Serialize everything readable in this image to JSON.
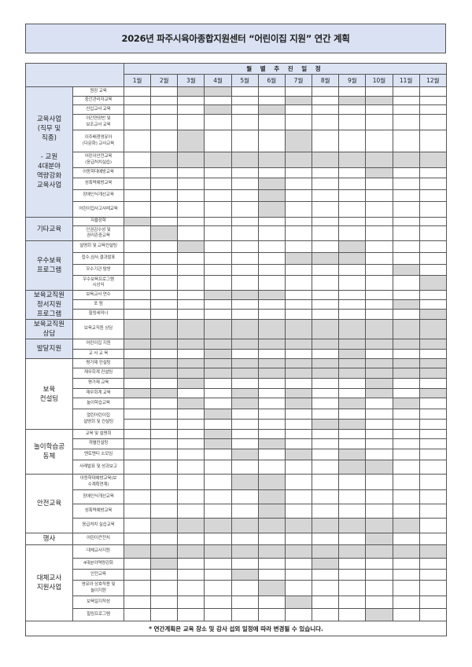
{
  "title": "2026년 파주시육아종합지원센터 “어린이집 지원” 연간 계획",
  "header": {
    "schedule_label": "월 별 추 진 일 정",
    "months": [
      "1월",
      "2월",
      "3월",
      "4월",
      "5월",
      "6월",
      "7월",
      "8월",
      "9월",
      "10월",
      "11월",
      "12월"
    ]
  },
  "shade_color": "#d6d6d6",
  "category_color": "#dce4f4",
  "categories": [
    {
      "label": "교육사업\n(직무 및\n직종)\n\n- 교원\n4대분야\n역량강화\n교육사업",
      "highlight": true,
      "items": [
        {
          "label": "원장 교육",
          "months": [
            [
              3,
              4
            ]
          ]
        },
        {
          "label": "중간관리자교육",
          "months": [
            [
              7,
              9,
              10
            ]
          ]
        },
        {
          "label": "신입교사 교육",
          "months": [
            [
              4,
              6
            ]
          ]
        },
        {
          "label": "야간연장반 및\n보조교사 교육",
          "months": [
            []
          ]
        },
        {
          "label": "이주배경영유아\n(다문화) 교사교육",
          "months": [
            [
              3,
              7
            ]
          ]
        },
        {
          "label": "어린이안전교육\n(응급처치실습)",
          "months": [
            [
              2,
              3,
              4,
              5,
              6,
              7,
              8,
              9,
              10,
              11,
              12
            ]
          ]
        },
        {
          "label": "아동학대예방교육",
          "months": [
            [
              10
            ]
          ]
        },
        {
          "label": "성폭력예방교육",
          "months": [
            [
              6
            ]
          ]
        },
        {
          "label": "장애인식개선교육",
          "months": [
            [
              6
            ]
          ]
        },
        {
          "label": "어린이집사고사례교육",
          "months": [
            [
              6
            ]
          ]
        }
      ]
    },
    {
      "label": "기타교육",
      "highlight": true,
      "items": [
        {
          "label": "자율장학",
          "months": [
            [
              1
            ]
          ]
        },
        {
          "label": "인권감수성 및\n권리존중교육",
          "months": [
            [
              2
            ]
          ]
        }
      ]
    },
    {
      "label": "우수보육\n프로그램",
      "highlight": true,
      "items": [
        {
          "label": "설명회 및 교육컨설팅",
          "months": [
            [
              3,
              9
            ]
          ]
        },
        {
          "label": "접수,심사,결과발표",
          "months": [
            [
              7,
              8,
              9
            ]
          ]
        },
        {
          "label": "우수기관 탐방",
          "months": [
            [
              11
            ]
          ]
        },
        {
          "label": "우수보육프로그램\n시상식",
          "months": [
            [
              12
            ]
          ]
        }
      ]
    },
    {
      "label": "보육교직원\n정서지원\n프로그램",
      "highlight": true,
      "items": [
        {
          "label": "보육교사 연수",
          "months": [
            [
              4,
              5,
              6
            ]
          ]
        },
        {
          "label": "포 럼",
          "months": [
            [
              11
            ]
          ]
        },
        {
          "label": "힐링세미나",
          "months": [
            [
              12
            ]
          ]
        }
      ]
    },
    {
      "label": "보육교직원\n상담",
      "highlight": true,
      "items": [
        {
          "label": "보육교직원 상담",
          "months": [
            [
              1,
              2,
              3,
              4,
              5,
              6,
              7,
              8,
              9,
              10,
              11,
              12
            ]
          ]
        }
      ]
    },
    {
      "label": "발달지원",
      "highlight": true,
      "items": [
        {
          "label": "어린이집 지원",
          "months": [
            [
              1,
              2,
              3,
              4,
              5,
              6,
              7,
              8,
              9,
              10,
              11,
              12
            ]
          ]
        },
        {
          "label": "교 사 교 육",
          "months": [
            [
              4,
              9
            ]
          ]
        }
      ]
    },
    {
      "label": "보육\n컨설팅",
      "highlight": false,
      "items": [
        {
          "label": "평가제 컨설팅",
          "months": [
            [
              1,
              2,
              3,
              4,
              5,
              6,
              7,
              8,
              9,
              10,
              11,
              12
            ]
          ]
        },
        {
          "label": "재무회계 컨설팅",
          "months": [
            [
              1,
              2,
              3,
              4,
              5,
              6,
              7,
              8,
              9,
              10,
              11,
              12
            ]
          ]
        },
        {
          "label": "평가제 교육",
          "months": [
            [
              3,
              10
            ]
          ]
        },
        {
          "label": "재무회계 교육",
          "months": [
            [
              1,
              2,
              5,
              7,
              10,
              12
            ]
          ]
        },
        {
          "label": "놀이학습교육",
          "months": [
            [
              3,
              5,
              7,
              9,
              11
            ]
          ]
        },
        {
          "label": "열린어린이집\n설명회 및 컨설팅",
          "months": [
            [
              4
            ],
            [
              8,
              9
            ]
          ]
        }
      ]
    },
    {
      "label": "놀이학습공\n동체",
      "highlight": false,
      "items": [
        {
          "label": "교육 및 설명회",
          "months": [
            [
              4
            ]
          ]
        },
        {
          "label": "개별컨설팅",
          "months": [
            [
              4,
              6
            ]
          ]
        },
        {
          "label": "멘토멘티 소모임",
          "months": [
            [
              5,
              7,
              9
            ]
          ]
        },
        {
          "label": "사례발표 및 성과보고",
          "months": [
            [
              9,
              10
            ]
          ]
        }
      ]
    },
    {
      "label": "안전교육",
      "highlight": false,
      "items": [
        {
          "label": "아동학대예방교육(보\n수계획연계)",
          "months": [
            [
              5,
              6
            ]
          ]
        },
        {
          "label": "장애인식개선교육",
          "months": [
            [
              6
            ]
          ]
        },
        {
          "label": "성폭력예방교육",
          "months": [
            [
              6
            ]
          ]
        },
        {
          "label": "응급처치 실습교육",
          "months": [
            [
              2,
              3,
              4,
              5,
              6,
              7,
              8,
              9,
              10,
              11
            ]
          ]
        }
      ]
    },
    {
      "label": "행사",
      "highlight": false,
      "items": [
        {
          "label": "어린이큰잔치",
          "months": [
            [
              10
            ]
          ]
        }
      ]
    },
    {
      "label": "대체교사\n지원사업",
      "highlight": false,
      "items": [
        {
          "label": "대체교사지원",
          "months": [
            [
              1,
              2,
              3,
              4,
              5,
              6,
              7,
              8,
              9,
              10,
              11,
              12
            ]
          ]
        },
        {
          "label": "4대분야역량강화",
          "months": [
            [
              2,
              8
            ]
          ]
        },
        {
          "label": "안전교육",
          "months": [
            [
              5
            ]
          ]
        },
        {
          "label": "영유아 상호작용 및\n놀이지원",
          "months": [
            [
              6
            ]
          ]
        },
        {
          "label": "보육일지작성",
          "months": [
            [
              7
            ]
          ]
        },
        {
          "label": "힐링프로그램",
          "months": [
            [
              10
            ]
          ]
        }
      ]
    }
  ],
  "footer_note": "* 연간계획은 교육 장소 및 강사 섭외 일정에 따라 변경될 수 있습니다."
}
